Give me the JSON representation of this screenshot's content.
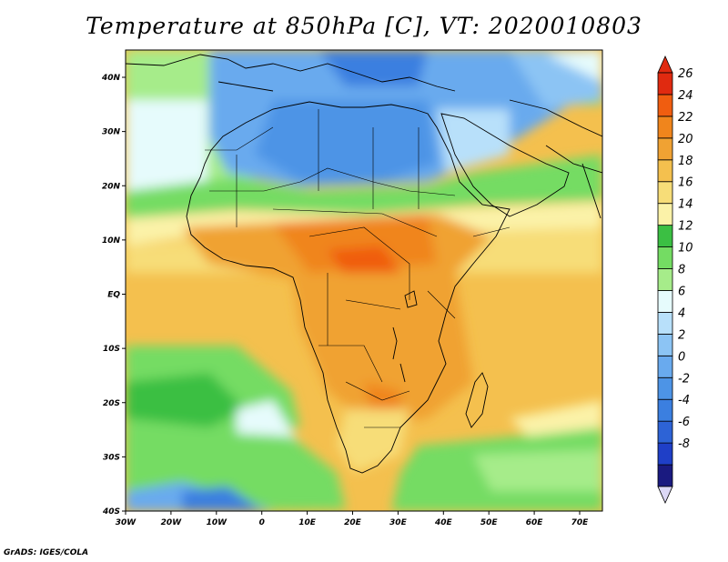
{
  "title": "Temperature at 850hPa [C], VT: 2020010803",
  "credit": "GrADS: IGES/COLA",
  "axes": {
    "x_ticks": [
      "30W",
      "20W",
      "10W",
      "0",
      "10E",
      "20E",
      "30E",
      "40E",
      "50E",
      "60E",
      "70E"
    ],
    "y_ticks": [
      "40N",
      "30N",
      "20N",
      "10N",
      "EQ",
      "10S",
      "20S",
      "30S",
      "40S"
    ]
  },
  "colorbar": {
    "labels": [
      "26",
      "24",
      "22",
      "20",
      "18",
      "16",
      "14",
      "12",
      "10",
      "8",
      "6",
      "4",
      "2",
      "0",
      "-2",
      "-4",
      "-6",
      "-8"
    ],
    "colors": [
      "#1a1a80",
      "#1f3fc7",
      "#2d63d6",
      "#3b7fe0",
      "#4d94e6",
      "#69aaee",
      "#8cc4f4",
      "#b8e0fa",
      "#e6fbfc",
      "#a6ec8a",
      "#74dc63",
      "#3bbf43",
      "#fbf2a8",
      "#f7dd78",
      "#f4c04e",
      "#f0a233",
      "#f0851c",
      "#f05d10",
      "#e02a10"
    ],
    "under_color": "#dcd8f6"
  },
  "regions": {
    "sahara": "Saharan cold (blue)",
    "sahel": "Sahel warm band",
    "southern_ocean": "Southern ocean green"
  }
}
